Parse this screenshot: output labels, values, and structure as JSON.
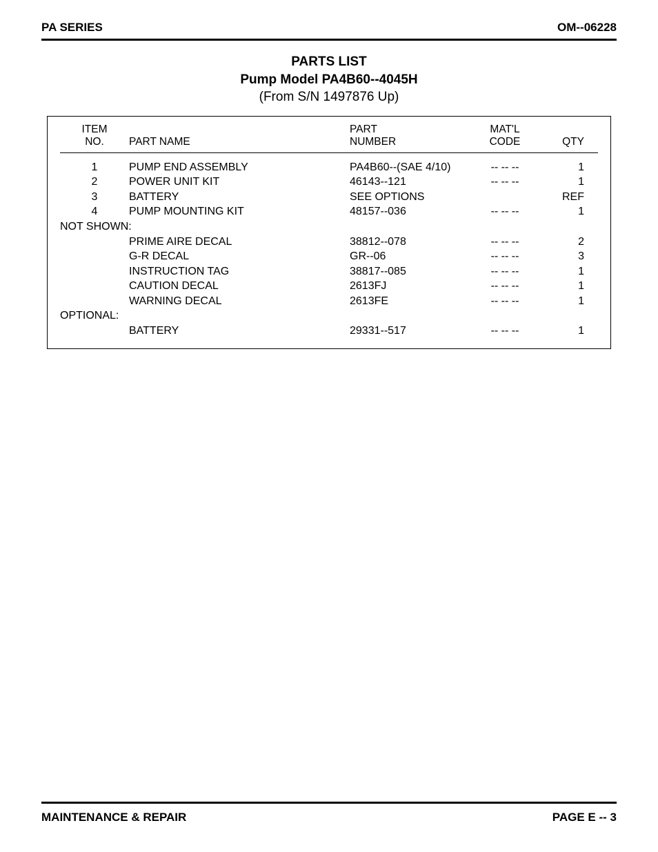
{
  "header": {
    "left": "PA SERIES",
    "right": "OM--06228"
  },
  "title": {
    "line1": "PARTS LIST",
    "line2": "Pump Model PA4B60--4045H",
    "line3": "(From S/N 1497876 Up)"
  },
  "columns": {
    "item": {
      "line1": "ITEM",
      "line2": "NO."
    },
    "name": "PART NAME",
    "part": {
      "line1": "PART",
      "line2": "NUMBER"
    },
    "matl": {
      "line1": "MAT'L",
      "line2": "CODE"
    },
    "qty": "QTY"
  },
  "rows_main": [
    {
      "item": "1",
      "name": "PUMP END ASSEMBLY",
      "part": "PA4B60--(SAE 4/10)",
      "matl": "-- -- --",
      "qty": "1"
    },
    {
      "item": "2",
      "name": "POWER UNIT KIT",
      "part": "46143--121",
      "matl": "-- -- --",
      "qty": "1"
    },
    {
      "item": "3",
      "name": "BATTERY",
      "part": "SEE OPTIONS",
      "matl": "",
      "qty": "REF"
    },
    {
      "item": "4",
      "name": "PUMP MOUNTING KIT",
      "part": "48157--036",
      "matl": "-- -- --",
      "qty": "1"
    }
  ],
  "section_notshown": "NOT SHOWN:",
  "rows_notshown": [
    {
      "item": "",
      "name": "PRIME AIRE DECAL",
      "part": "38812--078",
      "matl": "-- -- --",
      "qty": "2"
    },
    {
      "item": "",
      "name": "G-R DECAL",
      "part": "GR--06",
      "matl": "-- -- --",
      "qty": "3"
    },
    {
      "item": "",
      "name": "INSTRUCTION TAG",
      "part": "38817--085",
      "matl": "-- -- --",
      "qty": "1"
    },
    {
      "item": "",
      "name": "CAUTION DECAL",
      "part": "2613FJ",
      "matl": "-- -- --",
      "qty": "1"
    },
    {
      "item": "",
      "name": "WARNING DECAL",
      "part": "2613FE",
      "matl": "-- -- --",
      "qty": "1"
    }
  ],
  "section_optional": "OPTIONAL:",
  "rows_optional": [
    {
      "item": "",
      "name": "BATTERY",
      "part": "29331--517",
      "matl": "-- -- --",
      "qty": "1"
    }
  ],
  "footer": {
    "left": "MAINTENANCE & REPAIR",
    "right": "PAGE E -- 3"
  }
}
